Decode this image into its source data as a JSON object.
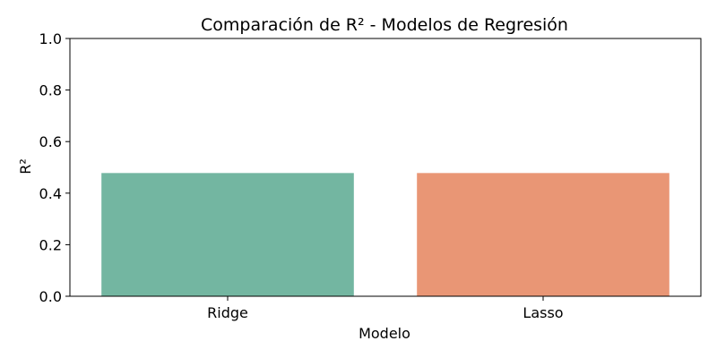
{
  "chart_data": {
    "type": "bar",
    "title": "Comparación de R² - Modelos de Regresión",
    "xlabel": "Modelo",
    "ylabel": "R²",
    "categories": [
      "Ridge",
      "Lasso"
    ],
    "values": [
      0.478,
      0.478
    ],
    "colors": [
      "#73b6a1",
      "#e99675"
    ],
    "ylim": [
      0,
      1
    ],
    "yticks": [
      "0.0",
      "0.2",
      "0.4",
      "0.6",
      "0.8",
      "1.0"
    ],
    "grid": false,
    "legend": "none"
  }
}
